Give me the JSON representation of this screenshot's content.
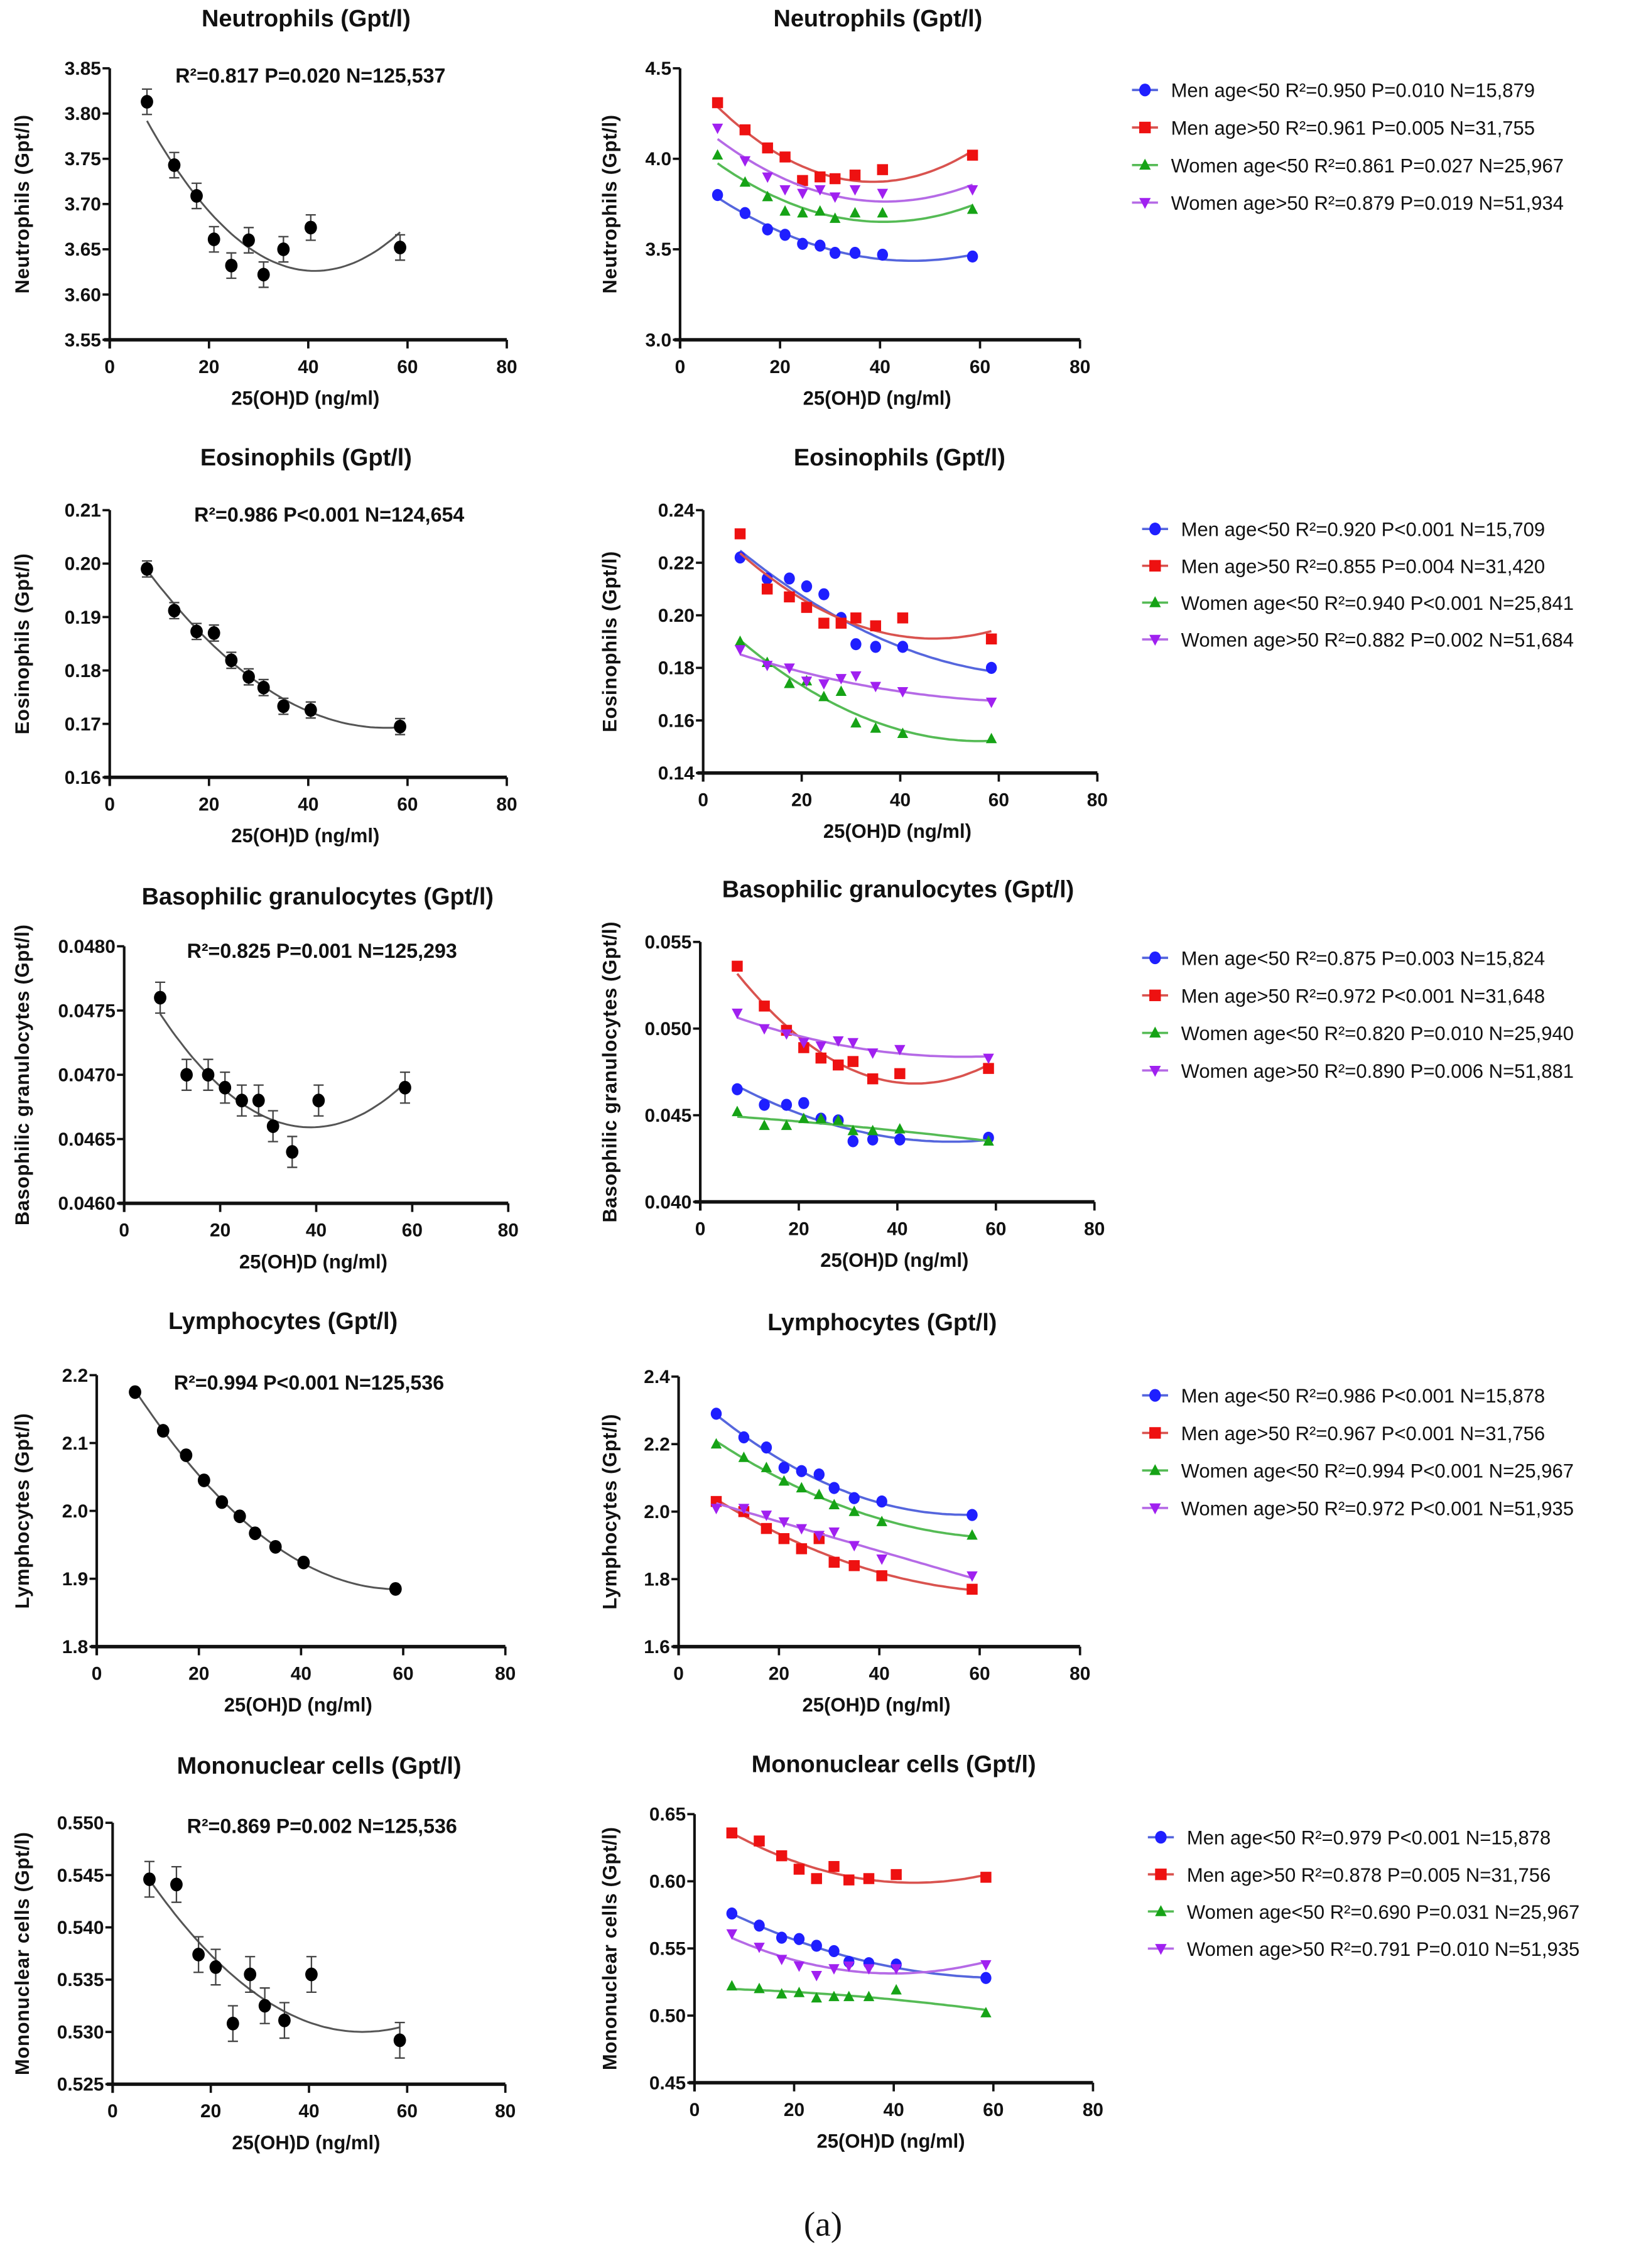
{
  "caption": "(a)",
  "colors": {
    "overall_marker": "#000000",
    "overall_fit": "#555555",
    "men_lt50": "#1f1fff",
    "men_gt50": "#ee1111",
    "women_lt50": "#16a316",
    "women_gt50": "#a020f0",
    "men_lt50_fit": "#5566dd",
    "men_gt50_fit": "#d9534f",
    "women_lt50_fit": "#55bb55",
    "women_gt50_fit": "#b56ae6"
  },
  "chart_data": [
    {
      "type": "scatter",
      "panel": "overall",
      "title": "Neutrophils (Gpt/l)",
      "xlabel": "25(OH)D (ng/ml)",
      "ylabel": "Neutrophils (Gpt/l)",
      "annotation": "R²=0.817 P=0.020 N=125,537",
      "xlim": [
        0,
        80
      ],
      "ylim": [
        3.55,
        3.85
      ],
      "xticks": [
        "0",
        "20",
        "40",
        "60",
        "80"
      ],
      "yticks": [
        "3.55",
        "3.60",
        "3.65",
        "3.70",
        "3.75",
        "3.80",
        "3.85"
      ],
      "fit": "quadratic",
      "error": 0.014,
      "x": [
        7.5,
        13,
        17.5,
        21,
        24.5,
        28,
        31,
        35,
        40.5,
        58.5
      ],
      "y": [
        3.813,
        3.743,
        3.709,
        3.661,
        3.632,
        3.66,
        3.622,
        3.65,
        3.674,
        3.652
      ]
    },
    {
      "type": "scatter",
      "panel": "by-group",
      "title": "Neutrophils (Gpt/l)",
      "xlabel": "25(OH)D (ng/ml)",
      "ylabel": "Neutrophils (Gpt/l)",
      "xlim": [
        0,
        80
      ],
      "ylim": [
        3.0,
        4.5
      ],
      "xticks": [
        "0",
        "20",
        "40",
        "60",
        "80"
      ],
      "yticks": [
        "3.0",
        "3.5",
        "4.0",
        "4.5"
      ],
      "fit": "quadratic",
      "legend_position": "right",
      "x": [
        7.5,
        13,
        17.5,
        21,
        24.5,
        28,
        31,
        35,
        40.5,
        58.5
      ],
      "series": [
        {
          "name": "Men age<50 R²=0.950  P=0.010  N=15,879",
          "marker": "circle",
          "color_key": "men_lt50",
          "y": [
            3.8,
            3.7,
            3.61,
            3.58,
            3.53,
            3.52,
            3.48,
            3.48,
            3.47,
            3.46
          ]
        },
        {
          "name": "Men age>50 R²=0.961  P=0.005  N=31,755",
          "marker": "square",
          "color_key": "men_gt50",
          "y": [
            4.31,
            4.16,
            4.06,
            4.01,
            3.88,
            3.9,
            3.89,
            3.91,
            3.94,
            4.02
          ]
        },
        {
          "name": "Women age<50 R²=0.861  P=0.027  N=25,967",
          "marker": "triangle-up",
          "color_key": "women_lt50",
          "y": [
            4.02,
            3.87,
            3.79,
            3.71,
            3.7,
            3.71,
            3.67,
            3.7,
            3.7,
            3.72
          ]
        },
        {
          "name": "Women age>50 R²=0.879  P=0.019  N=51,934",
          "marker": "triangle-down",
          "color_key": "women_gt50",
          "y": [
            4.17,
            3.99,
            3.9,
            3.83,
            3.81,
            3.83,
            3.79,
            3.83,
            3.81,
            3.83
          ]
        }
      ]
    },
    {
      "type": "scatter",
      "panel": "overall",
      "title": "Eosinophils (Gpt/l)",
      "xlabel": "25(OH)D (ng/ml)",
      "ylabel": "Eosinophils (Gpt/l)",
      "annotation": "R²=0.986 P<0.001 N=124,654",
      "xlim": [
        0,
        80
      ],
      "ylim": [
        0.16,
        0.21
      ],
      "xticks": [
        "0",
        "20",
        "40",
        "60",
        "80"
      ],
      "yticks": [
        "0.16",
        "0.17",
        "0.18",
        "0.19",
        "0.20",
        "0.21"
      ],
      "fit": "quadratic",
      "error": 0.0015,
      "x": [
        7.5,
        13,
        17.5,
        21,
        24.5,
        28,
        31,
        35,
        40.5,
        58.5
      ],
      "y": [
        0.199,
        0.1912,
        0.1873,
        0.187,
        0.1819,
        0.1788,
        0.1768,
        0.1733,
        0.1726,
        0.1695
      ]
    },
    {
      "type": "scatter",
      "panel": "by-group",
      "title": "Eosinophils (Gpt/l)",
      "xlabel": "25(OH)D (ng/ml)",
      "ylabel": "Eosinophils (Gpt/l)",
      "xlim": [
        0,
        80
      ],
      "ylim": [
        0.14,
        0.24
      ],
      "xticks": [
        "0",
        "20",
        "40",
        "60",
        "80"
      ],
      "yticks": [
        "0.14",
        "0.16",
        "0.18",
        "0.20",
        "0.22",
        "0.24"
      ],
      "fit": "quadratic",
      "legend_position": "right",
      "x": [
        7.5,
        13,
        17.5,
        21,
        24.5,
        28,
        31,
        35,
        40.5,
        58.5
      ],
      "series": [
        {
          "name": "Men age<50 R²=0.920  P<0.001 N=15,709",
          "marker": "circle",
          "color_key": "men_lt50",
          "y": [
            0.222,
            0.214,
            0.214,
            0.211,
            0.208,
            0.199,
            0.189,
            0.188,
            0.188,
            0.18
          ]
        },
        {
          "name": "Men age>50 R²=0.855  P=0.004 N=31,420",
          "marker": "square",
          "color_key": "men_gt50",
          "y": [
            0.231,
            0.21,
            0.207,
            0.203,
            0.197,
            0.197,
            0.199,
            0.196,
            0.199,
            0.191
          ]
        },
        {
          "name": "Women age<50 R²=0.940  P<0.001  N=25,841",
          "marker": "triangle-up",
          "color_key": "women_lt50",
          "y": [
            0.19,
            0.182,
            0.174,
            0.175,
            0.169,
            0.171,
            0.159,
            0.157,
            0.155,
            0.153
          ]
        },
        {
          "name": "Women age>50 R²=0.882  P=0.002  N=51,684",
          "marker": "triangle-down",
          "color_key": "women_gt50",
          "y": [
            0.187,
            0.181,
            0.18,
            0.175,
            0.174,
            0.176,
            0.177,
            0.173,
            0.171,
            0.167
          ]
        }
      ]
    },
    {
      "type": "scatter",
      "panel": "overall",
      "title": "Basophilic granulocytes (Gpt/l)",
      "xlabel": "25(OH)D (ng/ml)",
      "ylabel": "Basophilic granulocytes (Gpt/l)",
      "annotation": "R²=0.825 P=0.001 N=125,293",
      "xlim": [
        0,
        80
      ],
      "ylim": [
        0.046,
        0.048
      ],
      "xticks": [
        "0",
        "20",
        "40",
        "60",
        "80"
      ],
      "yticks": [
        "0.0460",
        "0.0465",
        "0.0470",
        "0.0475",
        "0.0480"
      ],
      "fit": "quadratic",
      "error": 0.00012,
      "x": [
        7.5,
        13,
        17.5,
        21,
        24.5,
        28,
        31,
        35,
        40.5,
        58.5
      ],
      "y": [
        0.0476,
        0.047,
        0.047,
        0.0469,
        0.0468,
        0.0468,
        0.0466,
        0.0464,
        0.0468,
        0.0469
      ]
    },
    {
      "type": "scatter",
      "panel": "by-group",
      "title": "Basophilic granulocytes (Gpt/l)",
      "xlabel": "25(OH)D (ng/ml)",
      "ylabel": "Basophilic granulocytes (Gpt/l)",
      "xlim": [
        0,
        80
      ],
      "ylim": [
        0.04,
        0.055
      ],
      "xticks": [
        "0",
        "20",
        "40",
        "60",
        "80"
      ],
      "yticks": [
        "0.040",
        "0.045",
        "0.050",
        "0.055"
      ],
      "fit": "quadratic",
      "legend_position": "right",
      "x": [
        7.5,
        13,
        17.5,
        21,
        24.5,
        28,
        31,
        35,
        40.5,
        58.5
      ],
      "series": [
        {
          "name": "Men age<50 R²=0.875  P=0.003 N=15,824",
          "marker": "circle",
          "color_key": "men_lt50",
          "y": [
            0.0465,
            0.0456,
            0.0456,
            0.0457,
            0.0448,
            0.0447,
            0.0435,
            0.0436,
            0.0436,
            0.0437
          ]
        },
        {
          "name": "Men age>50 R²=0.972  P<0.001 N=31,648",
          "marker": "square",
          "color_key": "men_gt50",
          "y": [
            0.0536,
            0.0513,
            0.0499,
            0.0489,
            0.0483,
            0.0479,
            0.0481,
            0.0471,
            0.0474,
            0.0477
          ]
        },
        {
          "name": "Women age<50 R²=0.820  P=0.010 N=25,940",
          "marker": "triangle-up",
          "color_key": "women_lt50",
          "y": [
            0.0452,
            0.0444,
            0.0444,
            0.0448,
            0.0448,
            0.0447,
            0.0441,
            0.0441,
            0.0442,
            0.0435
          ]
        },
        {
          "name": "Women age>50 R²=0.890  P=0.006 N=51,881",
          "marker": "triangle-down",
          "color_key": "women_gt50",
          "y": [
            0.0509,
            0.05,
            0.0497,
            0.0492,
            0.049,
            0.0493,
            0.0492,
            0.0486,
            0.0488,
            0.0483
          ]
        }
      ]
    },
    {
      "type": "scatter",
      "panel": "overall",
      "title": "Lymphocytes (Gpt/l)",
      "xlabel": "25(OH)D (ng/ml)",
      "ylabel": "Lymphocytes (Gpt/l)",
      "annotation": "R²=0.994 P<0.001 N=125,536",
      "xlim": [
        0,
        80
      ],
      "ylim": [
        1.8,
        2.2
      ],
      "xticks": [
        "0",
        "20",
        "40",
        "60",
        "80"
      ],
      "yticks": [
        "1.8",
        "1.9",
        "2.0",
        "2.1",
        "2.2"
      ],
      "fit": "quadratic",
      "error": 0,
      "x": [
        7.5,
        13,
        17.5,
        21,
        24.5,
        28,
        31,
        35,
        40.5,
        58.5
      ],
      "y": [
        2.175,
        2.118,
        2.082,
        2.045,
        2.013,
        1.992,
        1.967,
        1.947,
        1.924,
        1.885
      ]
    },
    {
      "type": "scatter",
      "panel": "by-group",
      "title": "Lymphocytes (Gpt/l)",
      "xlabel": "25(OH)D (ng/ml)",
      "ylabel": "Lymphocytes (Gpt/l)",
      "xlim": [
        0,
        80
      ],
      "ylim": [
        1.6,
        2.4
      ],
      "xticks": [
        "0",
        "20",
        "40",
        "60",
        "80"
      ],
      "yticks": [
        "1.6",
        "1.8",
        "2.0",
        "2.2",
        "2.4"
      ],
      "fit": "quadratic",
      "legend_position": "right",
      "x": [
        7.5,
        13,
        17.5,
        21,
        24.5,
        28,
        31,
        35,
        40.5,
        58.5
      ],
      "series": [
        {
          "name": "Men age<50 R²=0.986  P<0.001 N=15,878",
          "marker": "circle",
          "color_key": "men_lt50",
          "y": [
            2.29,
            2.22,
            2.19,
            2.13,
            2.12,
            2.11,
            2.07,
            2.04,
            2.03,
            1.99
          ]
        },
        {
          "name": "Men age>50 R²=0.967  P<0.001 N=31,756",
          "marker": "square",
          "color_key": "men_gt50",
          "y": [
            2.03,
            2.0,
            1.95,
            1.92,
            1.89,
            1.92,
            1.85,
            1.84,
            1.81,
            1.77
          ]
        },
        {
          "name": "Women age<50 R²=0.994  P<0.001 N=25,967",
          "marker": "triangle-up",
          "color_key": "women_lt50",
          "y": [
            2.2,
            2.16,
            2.13,
            2.09,
            2.07,
            2.05,
            2.02,
            2.0,
            1.97,
            1.93
          ]
        },
        {
          "name": "Women age>50 R²=0.972  P<0.001 N=51,935",
          "marker": "triangle-down",
          "color_key": "women_gt50",
          "y": [
            2.01,
            2.01,
            1.99,
            1.97,
            1.95,
            1.93,
            1.94,
            1.9,
            1.86,
            1.81
          ]
        }
      ]
    },
    {
      "type": "scatter",
      "panel": "overall",
      "title": "Mononuclear cells (Gpt/l)",
      "xlabel": "25(OH)D (ng/ml)",
      "ylabel": "Mononuclear cells (Gpt/l)",
      "annotation": "R²=0.869 P=0.002 N=125,536",
      "xlim": [
        0,
        80
      ],
      "ylim": [
        0.525,
        0.55
      ],
      "xticks": [
        "0",
        "20",
        "40",
        "60",
        "80"
      ],
      "yticks": [
        "0.525",
        "0.530",
        "0.535",
        "0.540",
        "0.545",
        "0.550"
      ],
      "fit": "quadratic",
      "error": 0.0017,
      "x": [
        7.5,
        13,
        17.5,
        21,
        24.5,
        28,
        31,
        35,
        40.5,
        58.5
      ],
      "y": [
        0.5446,
        0.5441,
        0.5374,
        0.5362,
        0.5308,
        0.5355,
        0.5325,
        0.5311,
        0.5355,
        0.5292
      ]
    },
    {
      "type": "scatter",
      "panel": "by-group",
      "title": "Mononuclear cells (Gpt/l)",
      "xlabel": "25(OH)D (ng/ml)",
      "ylabel": "Mononuclear cells (Gpt/l)",
      "xlim": [
        0,
        80
      ],
      "ylim": [
        0.45,
        0.65
      ],
      "xticks": [
        "0",
        "20",
        "40",
        "60",
        "80"
      ],
      "yticks": [
        "0.45",
        "0.50",
        "0.55",
        "0.60",
        "0.65"
      ],
      "fit": "quadratic",
      "legend_position": "right",
      "x": [
        7.5,
        13,
        17.5,
        21,
        24.5,
        28,
        31,
        35,
        40.5,
        58.5
      ],
      "series": [
        {
          "name": "Men age<50 R²=0.979  P<0.001 N=15,878",
          "marker": "circle",
          "color_key": "men_lt50",
          "y": [
            0.576,
            0.567,
            0.558,
            0.557,
            0.552,
            0.548,
            0.54,
            0.539,
            0.538,
            0.528
          ]
        },
        {
          "name": "Men age>50 R²=0.878  P=0.005 N=31,756",
          "marker": "square",
          "color_key": "men_gt50",
          "y": [
            0.636,
            0.63,
            0.619,
            0.609,
            0.602,
            0.611,
            0.601,
            0.602,
            0.605,
            0.603
          ]
        },
        {
          "name": "Women age<50 R²=0.690  P=0.031 N=25,967",
          "marker": "triangle-up",
          "color_key": "women_lt50",
          "y": [
            0.522,
            0.52,
            0.516,
            0.517,
            0.513,
            0.514,
            0.514,
            0.514,
            0.519,
            0.502
          ]
        },
        {
          "name": "Women age>50 R²=0.791  P=0.010 N=51,935",
          "marker": "triangle-down",
          "color_key": "women_gt50",
          "y": [
            0.561,
            0.551,
            0.542,
            0.537,
            0.53,
            0.535,
            0.537,
            0.535,
            0.535,
            0.538
          ]
        }
      ]
    }
  ]
}
